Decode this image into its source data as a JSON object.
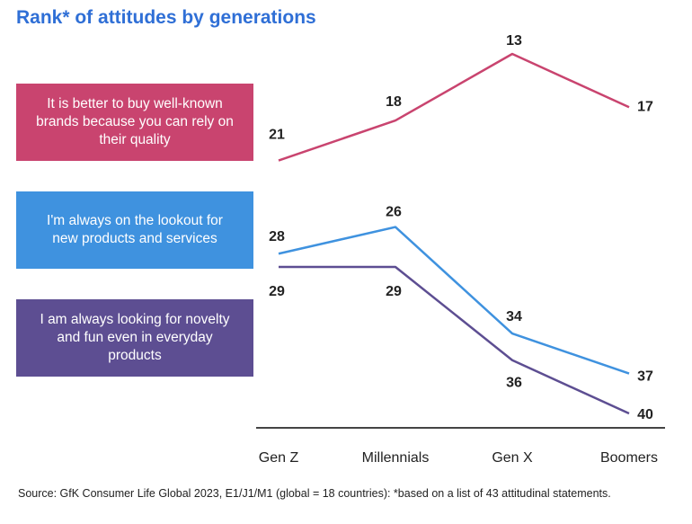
{
  "chart_data": {
    "type": "line",
    "title": "Rank* of attitudes by generations",
    "categories": [
      "Gen Z",
      "Millennials",
      "Gen X",
      "Boomers"
    ],
    "xlabel": "",
    "ylabel": "Rank",
    "yaxis_inverted": true,
    "ylim": [
      13,
      40
    ],
    "grid": false,
    "series": [
      {
        "name": "It is better to buy well-known brands because you can rely on their quality",
        "color": "#c9446f",
        "values": [
          21,
          18,
          13,
          17
        ]
      },
      {
        "name": "I'm always on the lookout for new products and services",
        "color": "#3f92df",
        "values": [
          28,
          26,
          34,
          37
        ]
      },
      {
        "name": "I am always looking for novelty and fun even in everyday products",
        "color": "#5d4e92",
        "values": [
          29,
          29,
          36,
          40
        ]
      }
    ],
    "source": "Source: GfK Consumer Life Global 2023, E1/J1/M1 (global = 18 countries): *based on a list of 43 attitudinal statements."
  }
}
